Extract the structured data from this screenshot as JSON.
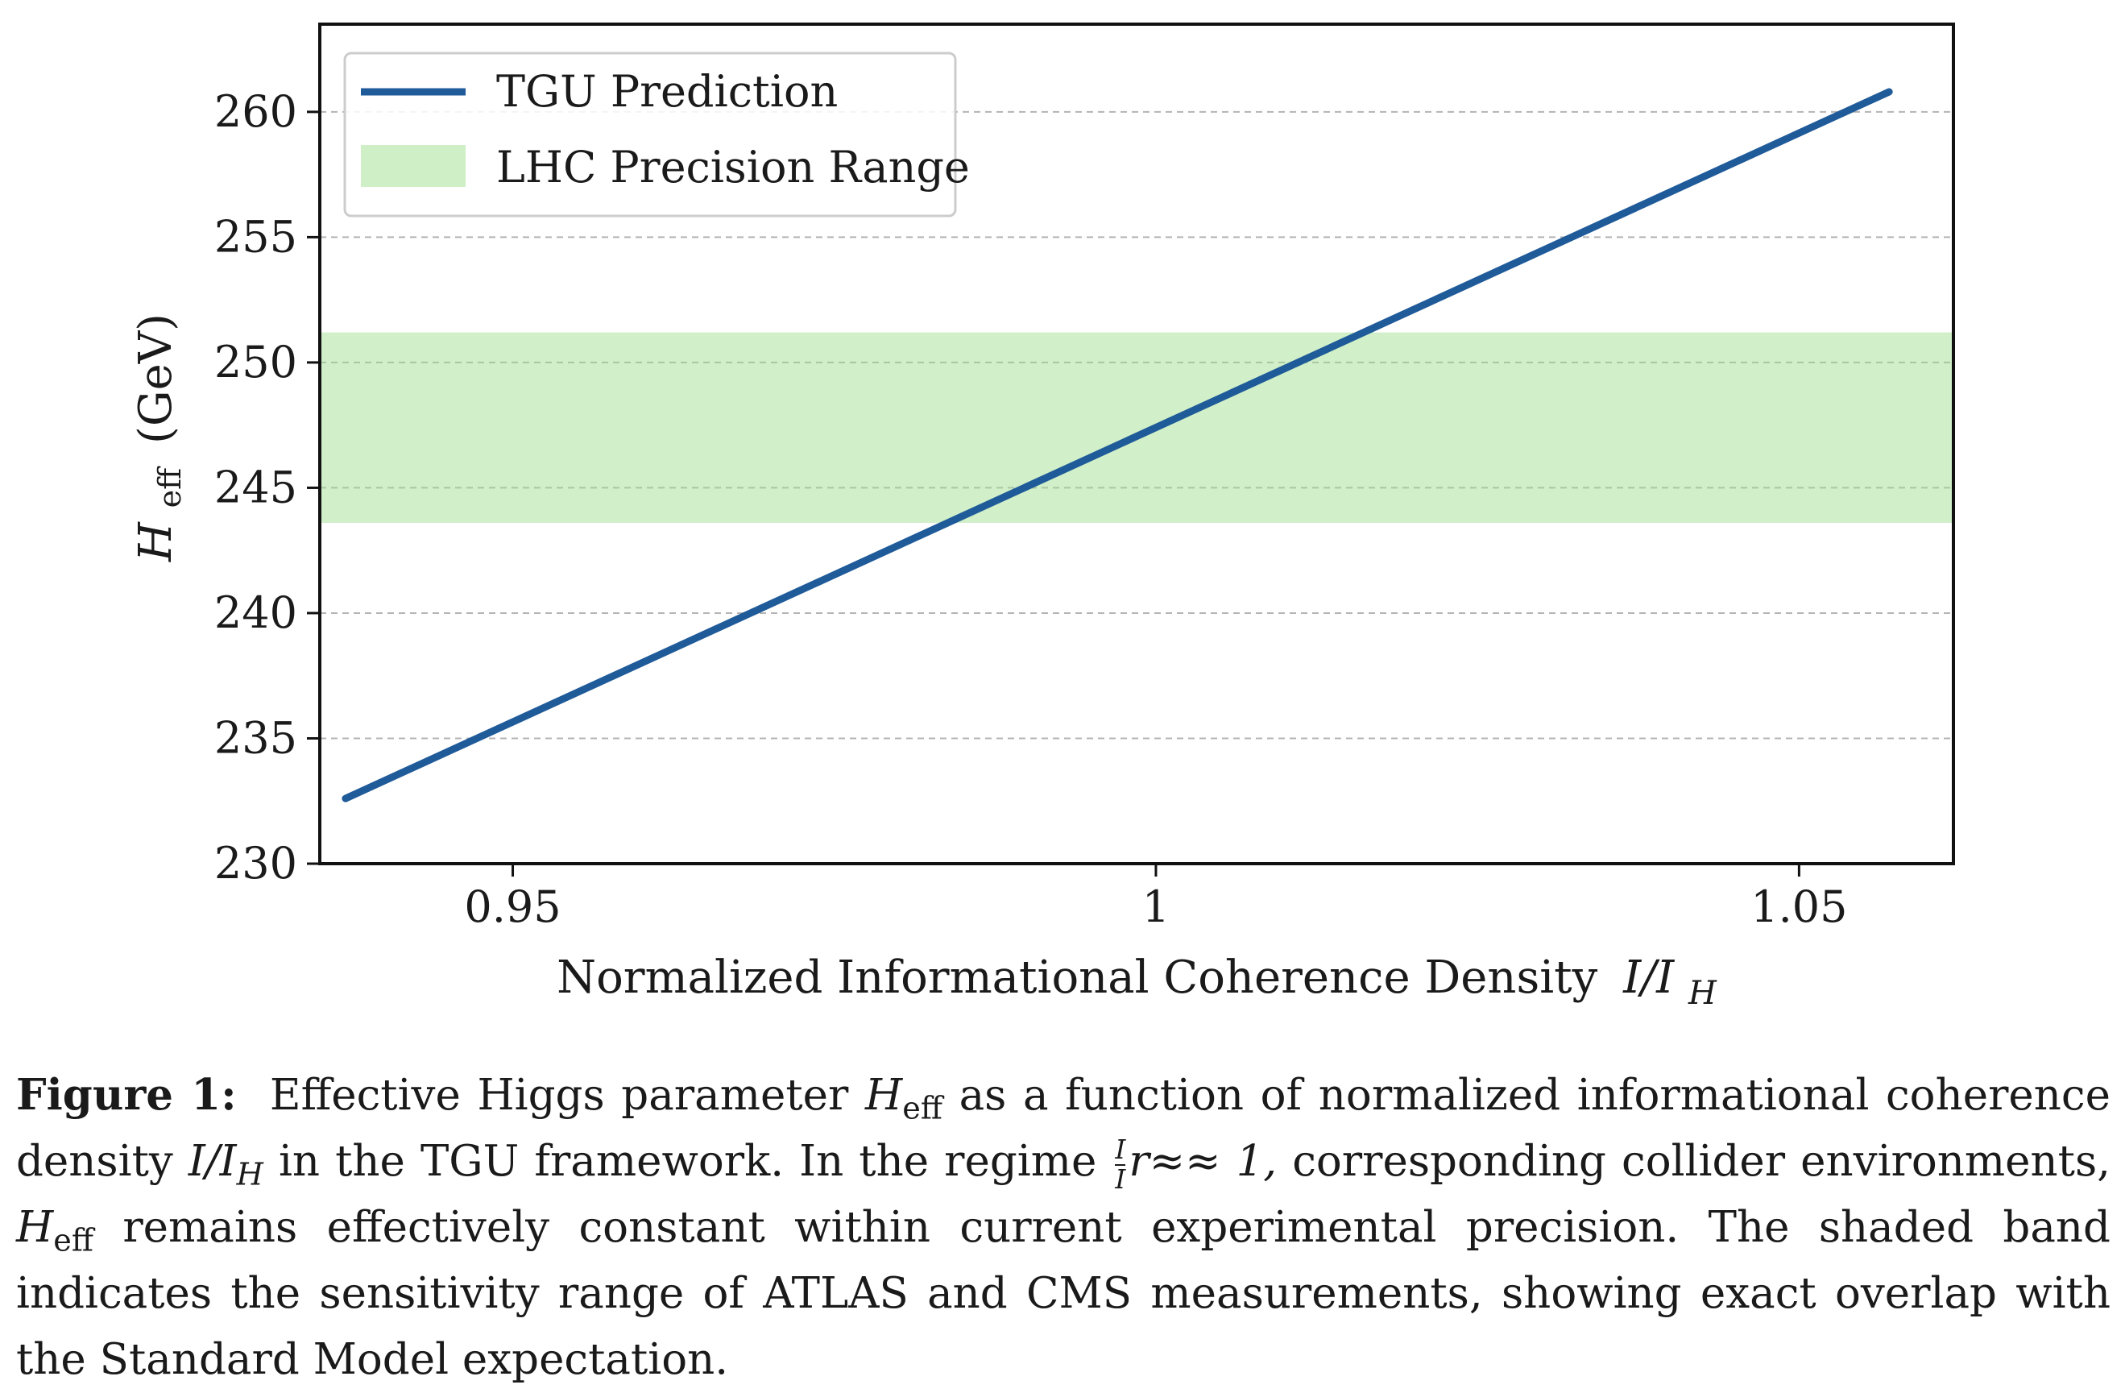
{
  "chart_data": {
    "type": "line",
    "title": "",
    "xlabel": "Normalized Informational Coherence Density",
    "xlabel_math": "I/I",
    "xlabel_math_sub": "H",
    "ylabel_var": "H",
    "ylabel_sub": "eff",
    "ylabel_unit": "(GeV)",
    "xlim": [
      0.935,
      1.062
    ],
    "ylim": [
      230,
      263.5
    ],
    "xticks": [
      0.95,
      1.0,
      1.05
    ],
    "xtick_labels": [
      "0.95",
      "1",
      "1.05"
    ],
    "yticks": [
      230,
      235,
      240,
      245,
      250,
      255,
      260
    ],
    "ytick_labels": [
      "230",
      "235",
      "240",
      "245",
      "250",
      "255",
      "260"
    ],
    "grid": "horizontal dashed",
    "legend_position": "top-left",
    "series": [
      {
        "name": "TGU Prediction",
        "color": "#1f5a99",
        "x": [
          0.937,
          1.057
        ],
        "y": [
          232.6,
          260.8
        ]
      }
    ],
    "bands": [
      {
        "name": "LHC Precision Range",
        "color": "#cfefc6",
        "y_min": 243.6,
        "y_max": 251.2
      }
    ]
  },
  "caption": {
    "label": "Figure 1:",
    "t1": "Effective Higgs parameter",
    "t2": "as a function of normalized informational coherence density",
    "t3": "in the TGU framework.  In the regime",
    "t4": "corresponding collider environments,",
    "t5": "remains effectively constant within current experimental precision. The shaded band indicates the sensitivity range of ATLAS and CMS measurements, showing exact overlap with the Standard Model expectation.",
    "var_H": "H",
    "sub_eff": "eff",
    "var_I_over_IH": "I/I",
    "sub_H": "H",
    "regime_frac_num": "I",
    "regime_frac_den": "I",
    "regime_rest": "r≈≈ 1,"
  }
}
